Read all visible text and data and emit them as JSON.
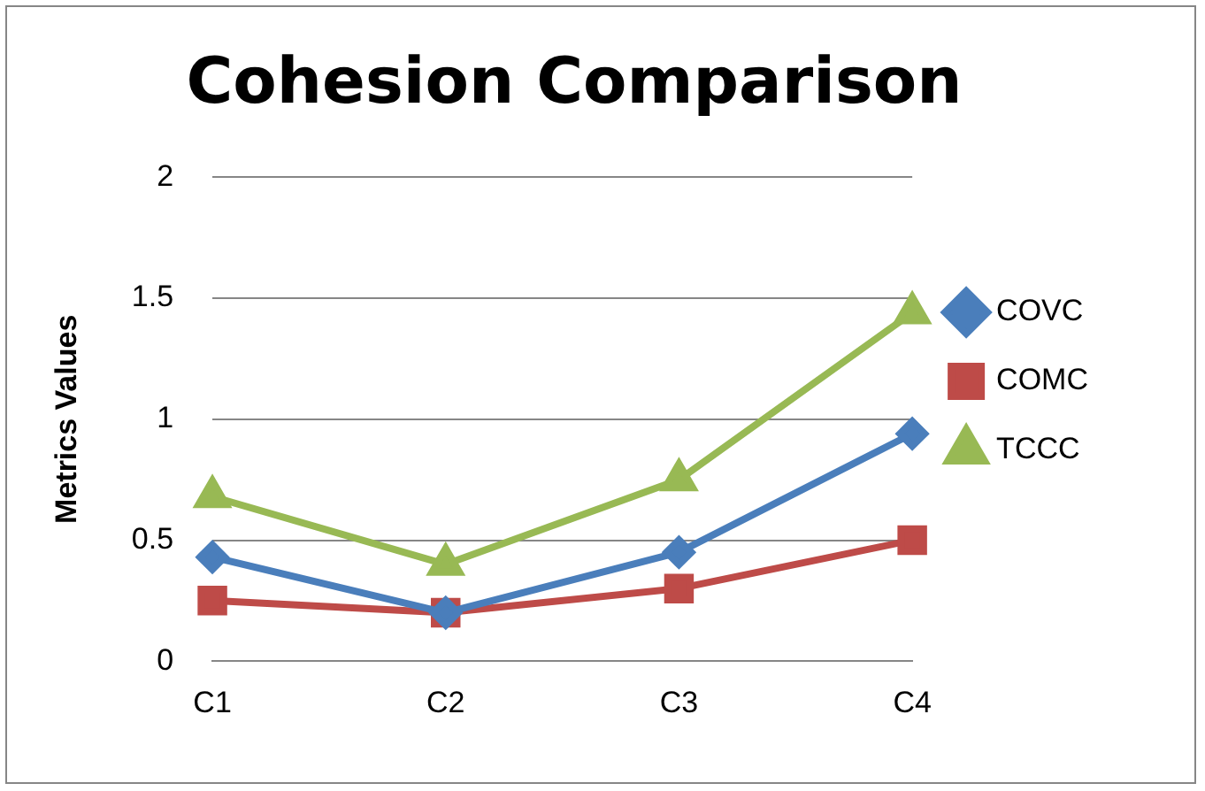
{
  "chart_data": {
    "type": "line",
    "title": "Cohesion Comparison",
    "ylabel": "Metrics Values",
    "categories": [
      "C1",
      "C2",
      "C3",
      "C4"
    ],
    "series": [
      {
        "name": "COVC",
        "color": "#4a7ebb",
        "marker": "diamond",
        "values": [
          0.43,
          0.2,
          0.45,
          0.94
        ]
      },
      {
        "name": "COMC",
        "color": "#be4b48",
        "marker": "square",
        "values": [
          0.25,
          0.2,
          0.3,
          0.5
        ]
      },
      {
        "name": "TCCC",
        "color": "#98b954",
        "marker": "triangle",
        "values": [
          0.68,
          0.4,
          0.75,
          1.44
        ]
      }
    ],
    "ylim": [
      0,
      2
    ],
    "yticks": [
      0,
      0.5,
      1,
      1.5,
      2
    ],
    "grid": "y",
    "legend": "right"
  }
}
